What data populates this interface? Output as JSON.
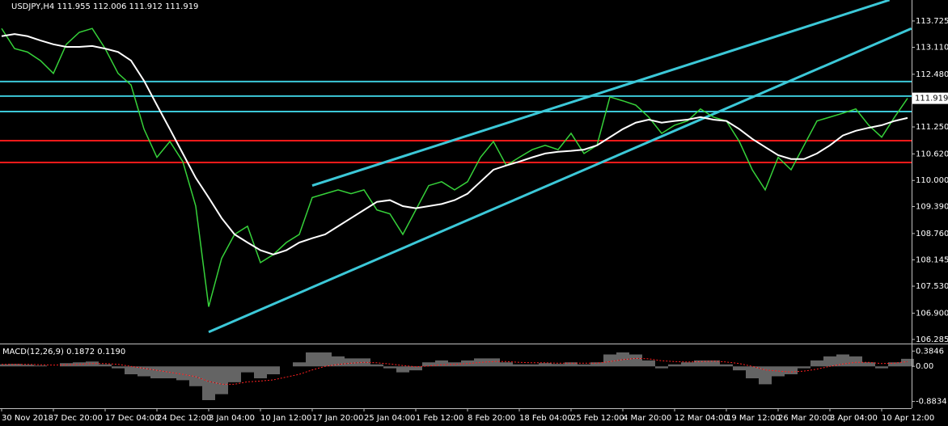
{
  "chart_data": [
    {
      "type": "line",
      "title": "USDJPY,H4  111.955 112.006 111.912 111.919",
      "categories": [
        "30 Nov 2018",
        null,
        null,
        null,
        "7 Dec 20:00",
        null,
        null,
        null,
        "17 Dec 04:00",
        null,
        null,
        null,
        "24 Dec 12:00",
        null,
        null,
        null,
        "3 Jan 04:00",
        null,
        null,
        null,
        "10 Jan 12:00",
        null,
        null,
        null,
        "17 Jan 20:00",
        null,
        null,
        null,
        "25 Jan 04:00",
        null,
        null,
        null,
        "1 Feb 12:00",
        null,
        null,
        null,
        "8 Feb 20:00",
        null,
        null,
        null,
        "18 Feb 04:00",
        null,
        null,
        null,
        "25 Feb 12:00",
        null,
        null,
        null,
        "4 Mar 20:00",
        null,
        null,
        null,
        "12 Mar 04:00",
        null,
        null,
        null,
        "19 Mar 12:00",
        null,
        null,
        null,
        "26 Mar 20:00",
        null,
        null,
        null,
        "3 Apr 04:00",
        null,
        null,
        null,
        "10 Apr 12:00",
        null,
        null
      ],
      "series": [
        {
          "color": "#36d23a",
          "values": [
            113.55,
            113.08,
            113.0,
            112.8,
            112.5,
            113.18,
            113.46,
            113.55,
            113.08,
            112.5,
            112.23,
            111.2,
            110.54,
            110.91,
            110.44,
            109.4,
            107.05,
            108.18,
            108.74,
            108.93,
            108.08,
            108.27,
            108.55,
            108.74,
            109.6,
            109.69,
            109.78,
            109.69,
            109.78,
            109.31,
            109.22,
            108.74,
            109.31,
            109.88,
            109.97,
            109.78,
            109.97,
            110.54,
            110.91,
            110.35,
            110.54,
            110.72,
            110.82,
            110.72,
            111.1,
            110.63,
            110.82,
            111.95,
            111.86,
            111.76,
            111.48,
            111.1,
            111.29,
            111.39,
            111.67,
            111.48,
            111.39,
            110.91,
            110.25,
            109.78,
            110.54,
            110.25,
            110.82,
            111.39,
            111.48,
            111.57,
            111.67,
            111.29,
            111.01,
            111.48,
            111.919
          ]
        },
        {
          "color": "#ffffff",
          "values": [
            113.37,
            113.42,
            113.37,
            113.27,
            113.18,
            113.12,
            113.12,
            113.14,
            113.08,
            113.0,
            112.8,
            112.33,
            111.76,
            111.2,
            110.63,
            110.06,
            109.6,
            109.12,
            108.74,
            108.55,
            108.37,
            108.27,
            108.37,
            108.55,
            108.65,
            108.74,
            108.93,
            109.12,
            109.31,
            109.5,
            109.54,
            109.4,
            109.35,
            109.4,
            109.45,
            109.54,
            109.69,
            109.97,
            110.25,
            110.35,
            110.44,
            110.54,
            110.63,
            110.67,
            110.69,
            110.72,
            110.82,
            111.01,
            111.2,
            111.35,
            111.42,
            111.35,
            111.39,
            111.42,
            111.48,
            111.42,
            111.39,
            111.2,
            110.97,
            110.78,
            110.59,
            110.5,
            110.5,
            110.63,
            110.82,
            111.05,
            111.16,
            111.23,
            111.29,
            111.39,
            111.46
          ]
        }
      ],
      "last_price": 111.919,
      "levels": [
        {
          "value": 112.31,
          "color": "#3cc8d8"
        },
        {
          "value": 111.97,
          "color": "#3cc8d8"
        },
        {
          "value": 111.61,
          "color": "#3cc8d8"
        },
        {
          "value": 110.93,
          "color": "#ff1a1a"
        },
        {
          "value": 110.42,
          "color": "#ff1a1a"
        }
      ],
      "trendlines": [
        {
          "color": "#3cc8d8",
          "x": [
            16,
            70.3
          ],
          "y": [
            106.46,
            113.55
          ]
        },
        {
          "color": "#3cc8d8",
          "x": [
            24,
            68.6
          ],
          "y": [
            109.88,
            114.215
          ]
        }
      ],
      "ylim": [
        106.19,
        114.215
      ],
      "yticks": [
        106.285,
        {
          "value": 106.9,
          "label": "106.900"
        },
        {
          "value": 107.53,
          "label": "107.530"
        },
        108.145,
        {
          "value": 108.76,
          "label": "108.760"
        },
        {
          "value": 109.39,
          "label": "109.390"
        },
        {
          "value": 110.0,
          "label": "110.000"
        },
        {
          "value": 110.62,
          "label": "110.620"
        },
        {
          "value": 111.25,
          "label": "111.250"
        },
        {
          "value": 112.48,
          "label": "112.480"
        },
        {
          "value": 113.11,
          "label": "113.110"
        },
        113.725
      ]
    },
    {
      "type": "bar",
      "title": "MACD(12,26,9) 0.1872 0.1190",
      "color": "#c8c8c8",
      "values": [
        0.05,
        0.06,
        0.04,
        0.02,
        0.0,
        0.08,
        0.1,
        0.12,
        0.05,
        -0.05,
        -0.2,
        -0.25,
        -0.3,
        -0.3,
        -0.35,
        -0.5,
        -0.85,
        -0.7,
        -0.4,
        -0.15,
        -0.3,
        -0.2,
        0.0,
        0.1,
        0.35,
        0.35,
        0.25,
        0.2,
        0.2,
        0.05,
        -0.05,
        -0.15,
        -0.1,
        0.1,
        0.15,
        0.1,
        0.15,
        0.2,
        0.2,
        0.1,
        0.05,
        0.05,
        0.08,
        0.06,
        0.1,
        0.05,
        0.1,
        0.3,
        0.35,
        0.3,
        0.15,
        -0.05,
        0.05,
        0.1,
        0.15,
        0.15,
        0.05,
        -0.1,
        -0.3,
        -0.45,
        -0.25,
        -0.2,
        -0.05,
        0.15,
        0.25,
        0.3,
        0.25,
        0.1,
        -0.05,
        0.1,
        0.19
      ],
      "signal": {
        "color": "#ff2020",
        "values": [
          0.05,
          0.05,
          0.05,
          0.04,
          0.03,
          0.04,
          0.05,
          0.07,
          0.07,
          0.05,
          0.0,
          -0.05,
          -0.1,
          -0.15,
          -0.2,
          -0.26,
          -0.38,
          -0.45,
          -0.45,
          -0.39,
          -0.37,
          -0.34,
          -0.27,
          -0.2,
          -0.09,
          0.0,
          0.05,
          0.08,
          0.1,
          0.09,
          0.06,
          0.02,
          -0.01,
          0.01,
          0.04,
          0.05,
          0.07,
          0.1,
          0.12,
          0.12,
          0.1,
          0.09,
          0.09,
          0.08,
          0.08,
          0.08,
          0.08,
          0.12,
          0.17,
          0.2,
          0.19,
          0.14,
          0.12,
          0.11,
          0.12,
          0.13,
          0.11,
          0.07,
          0.0,
          -0.09,
          -0.12,
          -0.14,
          -0.12,
          -0.07,
          0.0,
          0.06,
          0.1,
          0.1,
          0.07,
          0.08,
          0.12
        ]
      },
      "ylim": [
        -1.054,
        0.513
      ],
      "yticks": [
        -0.8834,
        {
          "value": 0,
          "label": "0.00"
        },
        0.3846
      ]
    }
  ]
}
